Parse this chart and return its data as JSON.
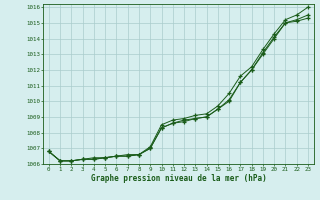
{
  "x": [
    0,
    1,
    2,
    3,
    4,
    5,
    6,
    7,
    8,
    9,
    10,
    11,
    12,
    13,
    14,
    15,
    16,
    17,
    18,
    19,
    20,
    21,
    22,
    23
  ],
  "line_top": [
    1006.8,
    1006.2,
    1006.2,
    1006.3,
    1006.4,
    1006.4,
    1006.5,
    1006.6,
    1006.6,
    1007.1,
    1008.5,
    1008.8,
    1008.9,
    1009.1,
    1009.2,
    1009.7,
    1010.5,
    1011.6,
    1012.2,
    1013.3,
    1014.3,
    1015.2,
    1015.5,
    1016.0
  ],
  "line_mid": [
    1006.8,
    1006.2,
    1006.2,
    1006.3,
    1006.3,
    1006.4,
    1006.5,
    1006.5,
    1006.6,
    1007.0,
    1008.3,
    1008.6,
    1008.8,
    1008.9,
    1009.0,
    1009.5,
    1010.1,
    1011.2,
    1012.0,
    1013.1,
    1014.1,
    1015.0,
    1015.2,
    1015.5
  ],
  "line_bot": [
    1006.8,
    1006.2,
    1006.2,
    1006.3,
    1006.3,
    1006.4,
    1006.5,
    1006.5,
    1006.6,
    1007.0,
    1008.3,
    1008.6,
    1008.7,
    1008.9,
    1009.0,
    1009.5,
    1010.0,
    1011.2,
    1012.0,
    1013.0,
    1014.0,
    1015.0,
    1015.1,
    1015.3
  ],
  "line_color": "#1a5c1a",
  "bg_color": "#d6eeee",
  "grid_color": "#aacccc",
  "xlabel": "Graphe pression niveau de la mer (hPa)",
  "xlabel_color": "#1a5c1a",
  "tick_color": "#1a5c1a",
  "ylim_min": 1006.0,
  "ylim_max": 1016.2,
  "xlim_min": -0.5,
  "xlim_max": 23.5,
  "yticks": [
    1006,
    1007,
    1008,
    1009,
    1010,
    1011,
    1012,
    1013,
    1014,
    1015,
    1016
  ],
  "xticks": [
    0,
    1,
    2,
    3,
    4,
    5,
    6,
    7,
    8,
    9,
    10,
    11,
    12,
    13,
    14,
    15,
    16,
    17,
    18,
    19,
    20,
    21,
    22,
    23
  ]
}
